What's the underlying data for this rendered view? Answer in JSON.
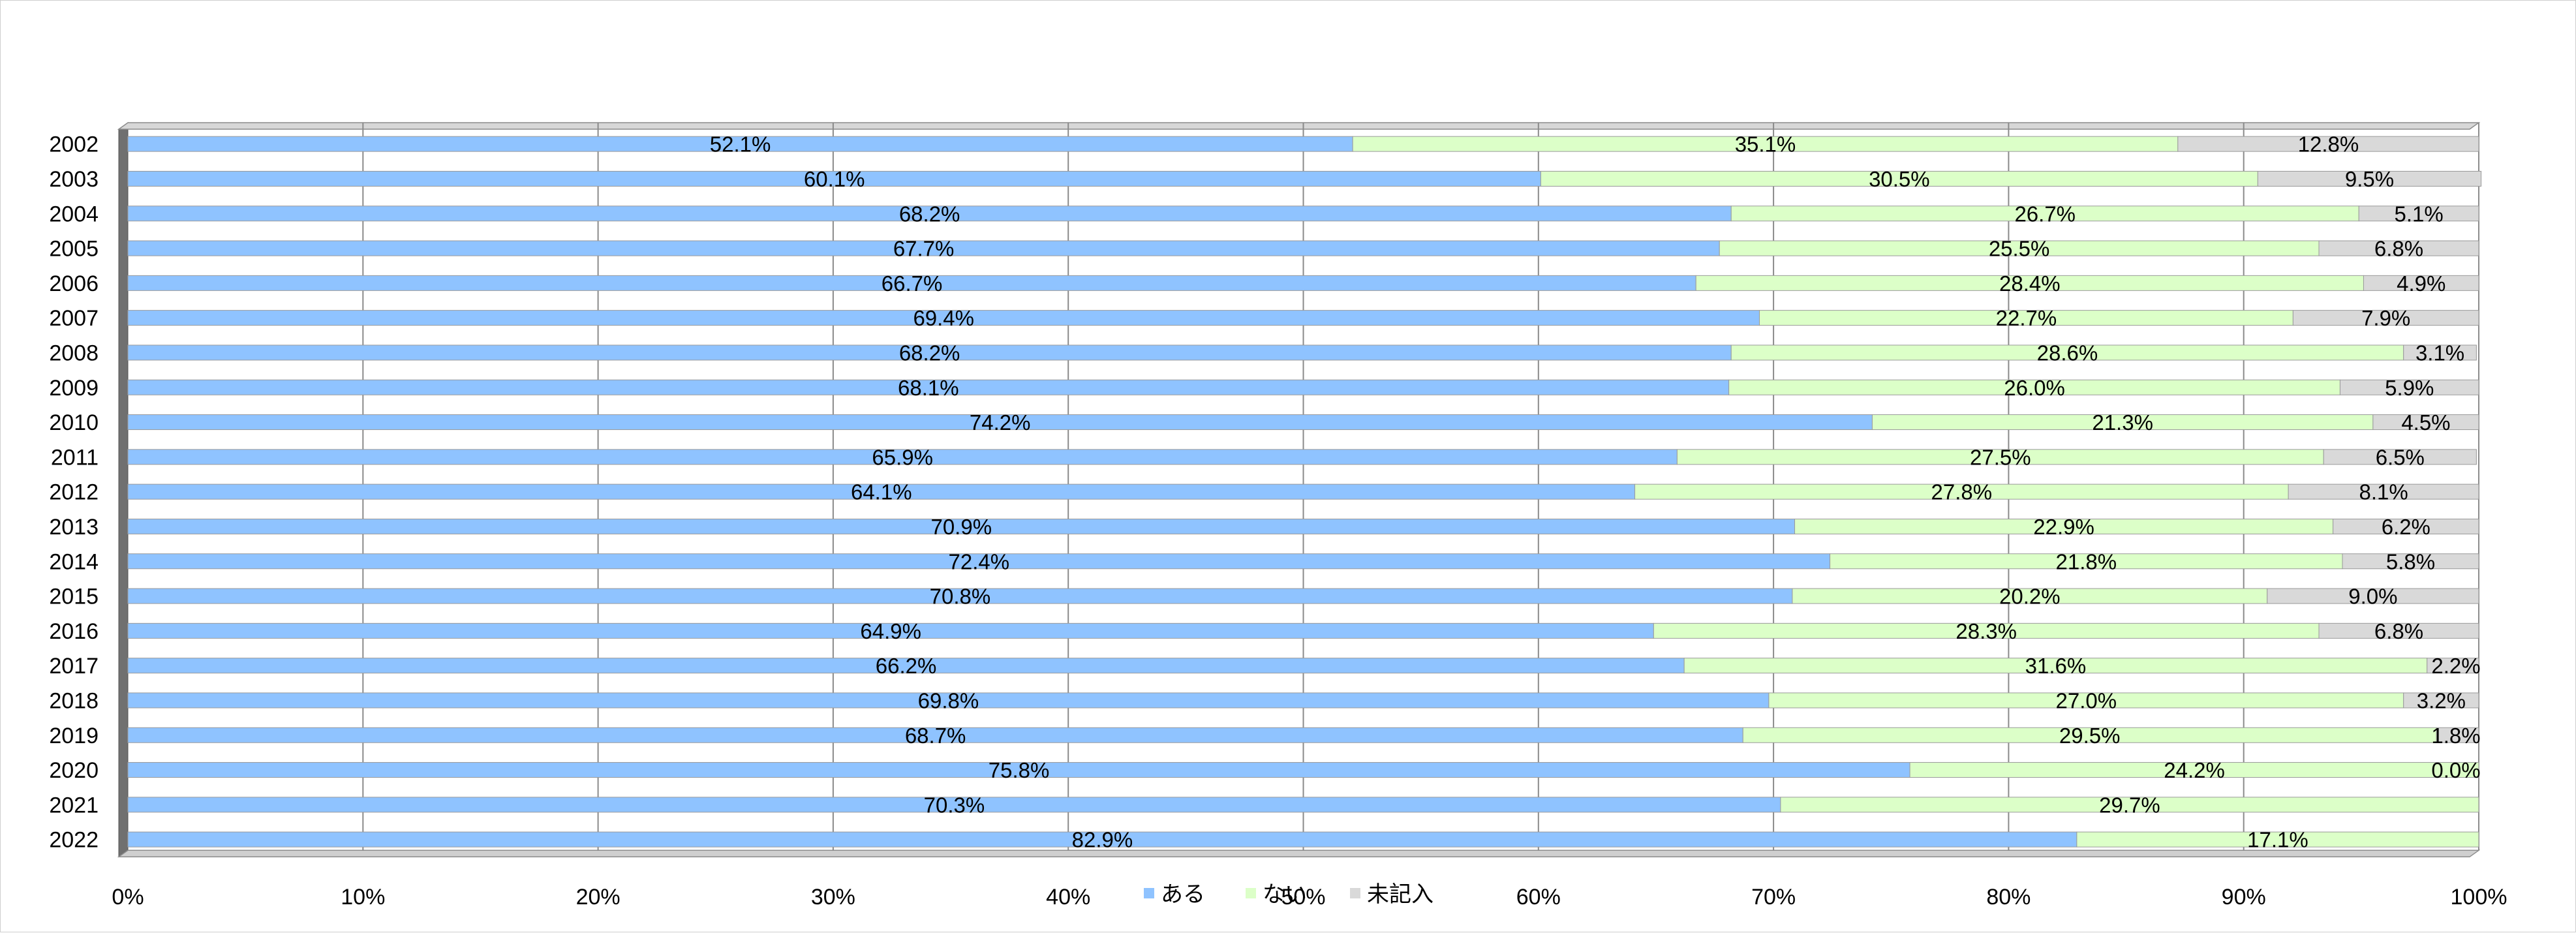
{
  "chart_data": {
    "type": "bar",
    "orientation": "horizontal",
    "stacked": "percent",
    "categories": [
      "2002",
      "2003",
      "2004",
      "2005",
      "2006",
      "2007",
      "2008",
      "2009",
      "2010",
      "2011",
      "2012",
      "2013",
      "2014",
      "2015",
      "2016",
      "2017",
      "2018",
      "2019",
      "2020",
      "2021",
      "2022"
    ],
    "series": [
      {
        "name": "ある",
        "color": "#8fc3ff",
        "values": [
          52.1,
          60.1,
          68.2,
          67.7,
          66.7,
          69.4,
          68.2,
          68.1,
          74.2,
          65.9,
          64.1,
          70.9,
          72.4,
          70.8,
          64.9,
          66.2,
          69.8,
          68.7,
          75.8,
          70.3,
          82.9
        ]
      },
      {
        "name": "ない",
        "color": "#dcffc8",
        "values": [
          35.1,
          30.5,
          26.7,
          25.5,
          28.4,
          22.7,
          28.6,
          26.0,
          21.3,
          27.5,
          27.8,
          22.9,
          21.8,
          20.2,
          28.3,
          31.6,
          27.0,
          29.5,
          24.2,
          29.7,
          17.1
        ]
      },
      {
        "name": "未記入",
        "color": "#d9d9d9",
        "values": [
          12.8,
          9.5,
          5.1,
          6.8,
          4.9,
          7.9,
          3.1,
          5.9,
          4.5,
          6.5,
          8.1,
          6.2,
          5.8,
          9.0,
          6.8,
          2.2,
          3.2,
          1.8,
          0.0,
          null,
          null
        ]
      }
    ],
    "x_ticks": [
      "0%",
      "10%",
      "20%",
      "30%",
      "40%",
      "50%",
      "60%",
      "70%",
      "80%",
      "90%",
      "100%"
    ],
    "xlim": [
      0,
      100
    ],
    "grid": "vertical",
    "legend_position": "bottom-center",
    "title": "",
    "xlabel": "",
    "ylabel": ""
  }
}
